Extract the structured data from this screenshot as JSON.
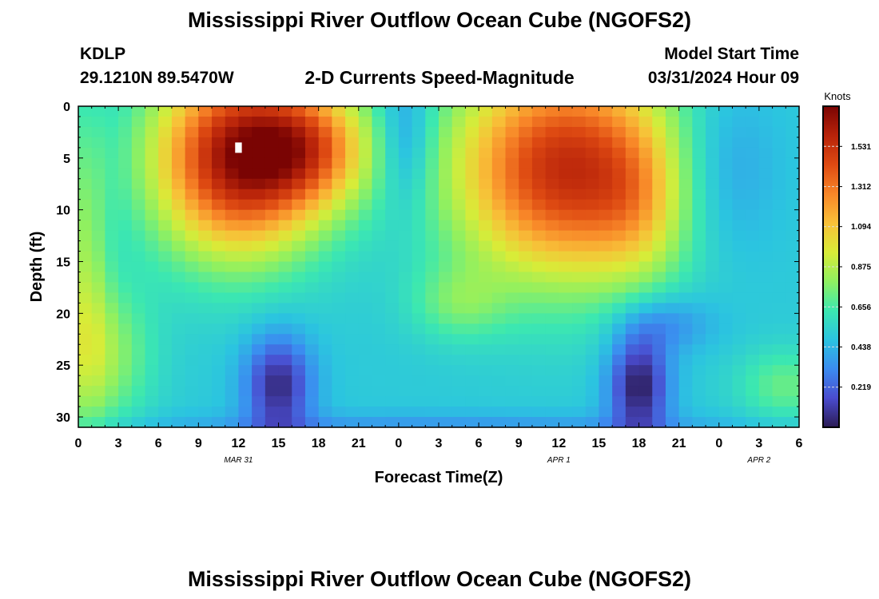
{
  "header": {
    "title": "Mississippi River Outflow Ocean Cube (NGOFS2)",
    "station_id": "KDLP",
    "station_coords": "29.1210N  89.5470W",
    "product": "2-D Currents Speed-Magnitude",
    "model_start_label": "Model Start Time",
    "model_start_value": "03/31/2024 Hour 09"
  },
  "footer": {
    "title": "Mississippi River Outflow Ocean Cube (NGOFS2)"
  },
  "chart_data": {
    "type": "heatmap",
    "xlabel": "Forecast Time(Z)",
    "ylabel": "Depth (ft)",
    "x_range_hours": [
      0,
      54
    ],
    "y_range_ft": [
      0,
      31
    ],
    "x_tick_hours": [
      0,
      3,
      6,
      9,
      12,
      15,
      18,
      21,
      24,
      27,
      30,
      33,
      36,
      39,
      42,
      45,
      48,
      51,
      54
    ],
    "x_tick_labels": [
      "0",
      "3",
      "6",
      "9",
      "12",
      "15",
      "18",
      "21",
      "0",
      "3",
      "6",
      "9",
      "12",
      "15",
      "18",
      "21",
      "0",
      "3",
      "6"
    ],
    "y_ticks": [
      0,
      5,
      10,
      15,
      20,
      25,
      30
    ],
    "day_labels": [
      {
        "text": "MAR 31",
        "hour": 12
      },
      {
        "text": "APR 1",
        "hour": 36
      },
      {
        "text": "APR 2",
        "hour": 51
      }
    ],
    "colorbar": {
      "title": "Knots",
      "min": 0,
      "max": 1.75,
      "tick_values": [
        0.219,
        0.438,
        0.656,
        0.875,
        1.094,
        1.312,
        1.531
      ],
      "tick_labels": [
        "0.219",
        "0.438",
        "0.656",
        "0.875",
        "1.094",
        "1.312",
        "1.531"
      ],
      "colors": [
        "#2b1b54",
        "#4a4ccf",
        "#3b8cf0",
        "#2bc4e0",
        "#3ce8b0",
        "#90f060",
        "#d8ec38",
        "#f8c038",
        "#f88628",
        "#de4a12",
        "#b8230a",
        "#7a0403"
      ]
    },
    "features": [
      {
        "t": 0.5,
        "d": 16,
        "st": 1.2,
        "sd": 11,
        "v": 0.28
      },
      {
        "t": 2,
        "d": 24,
        "st": 2.5,
        "sd": 5,
        "v": 0.3
      },
      {
        "t": 12,
        "d": 5,
        "st": 4.5,
        "sd": 6.5,
        "v": 1.15
      },
      {
        "t": 17.5,
        "d": 4,
        "st": 3.3,
        "sd": 4,
        "v": 0.55
      },
      {
        "t": 15,
        "d": 27,
        "st": 1.8,
        "sd": 3.5,
        "v": -0.45
      },
      {
        "t": 24.5,
        "d": 3,
        "st": 1.5,
        "sd": 5,
        "v": -0.25
      },
      {
        "t": 36.5,
        "d": 6,
        "st": 6,
        "sd": 7.5,
        "v": 1.05
      },
      {
        "t": 28.5,
        "d": 19,
        "st": 2.5,
        "sd": 2.5,
        "v": 0.2
      },
      {
        "t": 42,
        "d": 10,
        "st": 2.5,
        "sd": 5,
        "v": 0.2
      },
      {
        "t": 42,
        "d": 27,
        "st": 1.6,
        "sd": 3.5,
        "v": -0.5
      },
      {
        "t": 44,
        "d": 21,
        "st": 2.5,
        "sd": 2,
        "v": -0.2
      },
      {
        "t": 48,
        "d": 6,
        "st": 3,
        "sd": 6,
        "v": -0.2
      },
      {
        "t": 53,
        "d": 27,
        "st": 2.5,
        "sd": 2.5,
        "v": 0.22
      },
      {
        "t": 27,
        "d": 31,
        "st": 18,
        "sd": 1,
        "v": -0.15
      }
    ],
    "base_value": 0.5,
    "missing_cell": {
      "hour": 12,
      "depth_ft": 4
    }
  }
}
